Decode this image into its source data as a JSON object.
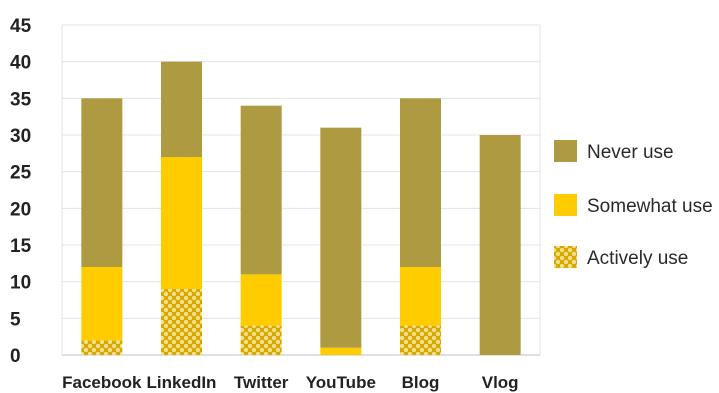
{
  "chart_data": {
    "type": "bar",
    "stacked": true,
    "categories": [
      "Facebook",
      "LinkedIn",
      "Twitter",
      "YouTube",
      "Blog",
      "Vlog"
    ],
    "series": [
      {
        "name": "Actively use",
        "values": [
          2,
          9,
          4,
          0,
          4,
          0
        ],
        "color": "#d9a800",
        "pattern": "dots"
      },
      {
        "name": "Somewhat use",
        "values": [
          10,
          18,
          7,
          1,
          8,
          0
        ],
        "color": "#ffcc00"
      },
      {
        "name": "Never use",
        "values": [
          23,
          13,
          23,
          30,
          23,
          30
        ],
        "color": "#ae9a40"
      }
    ],
    "legend_order": [
      "Never use",
      "Somewhat use",
      "Actively use"
    ],
    "legend_position": "right",
    "ylim": [
      0,
      45
    ],
    "yticks": [
      0,
      5,
      10,
      15,
      20,
      25,
      30,
      35,
      40,
      45
    ],
    "grid": true
  }
}
